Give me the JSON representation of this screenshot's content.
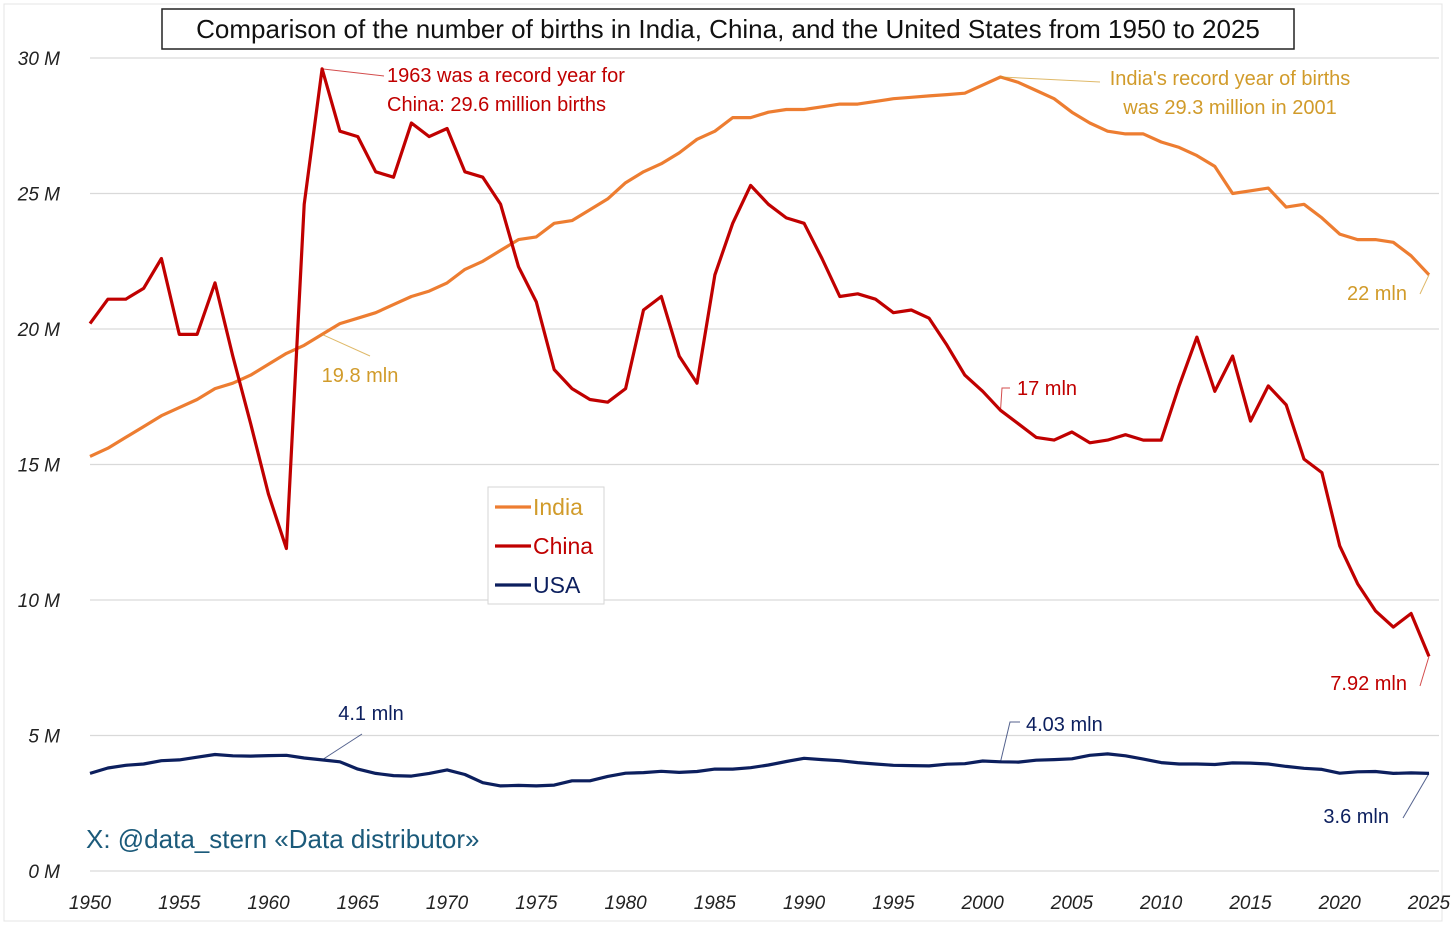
{
  "chart_data": {
    "type": "line",
    "title": "Comparison of the number of births in India, China, and the United States from 1950 to 2025",
    "xlabel": "",
    "ylabel": "",
    "xlim": [
      1950,
      2025
    ],
    "ylim": [
      0,
      30
    ],
    "grid": true,
    "legend_placement": "center-left",
    "y_ticks": [
      0,
      5,
      10,
      15,
      20,
      25,
      30
    ],
    "y_tick_labels": [
      "0 M",
      "5 M",
      "10 M",
      "15 M",
      "20 M",
      "25 M",
      "30 M"
    ],
    "x_ticks": [
      1950,
      1955,
      1960,
      1965,
      1970,
      1975,
      1980,
      1985,
      1990,
      1995,
      2000,
      2005,
      2010,
      2015,
      2020,
      2025
    ],
    "x_tick_labels": [
      "1950",
      "1955",
      "1960",
      "1965",
      "1970",
      "1975",
      "1980",
      "1985",
      "1990",
      "1995",
      "2000",
      "2005",
      "2010",
      "2015",
      "2020",
      "2025"
    ],
    "x_start": 1950,
    "unit": "million births",
    "series": [
      {
        "name": "India",
        "color": "#ed7d31",
        "values": [
          15.3,
          15.6,
          16.0,
          16.4,
          16.8,
          17.1,
          17.4,
          17.8,
          18.0,
          18.3,
          18.7,
          19.1,
          19.4,
          19.8,
          20.2,
          20.4,
          20.6,
          20.9,
          21.2,
          21.4,
          21.7,
          22.2,
          22.5,
          22.9,
          23.3,
          23.4,
          23.9,
          24.0,
          24.4,
          24.8,
          25.4,
          25.8,
          26.1,
          26.5,
          27.0,
          27.3,
          27.8,
          27.8,
          28.0,
          28.1,
          28.1,
          28.2,
          28.3,
          28.3,
          28.4,
          28.5,
          28.55,
          28.6,
          28.65,
          28.7,
          29.0,
          29.3,
          29.1,
          28.8,
          28.5,
          28.0,
          27.6,
          27.3,
          27.2,
          27.2,
          26.9,
          26.7,
          26.4,
          26.0,
          25.0,
          25.1,
          25.2,
          24.5,
          24.6,
          24.1,
          23.5,
          23.3,
          23.3,
          23.2,
          22.7,
          22.0
        ]
      },
      {
        "name": "China",
        "color": "#c00000",
        "values": [
          20.2,
          21.1,
          21.1,
          21.5,
          22.6,
          19.8,
          19.8,
          21.7,
          19.0,
          16.5,
          13.9,
          11.9,
          24.6,
          29.6,
          27.3,
          27.1,
          25.8,
          25.6,
          27.6,
          27.1,
          27.4,
          25.8,
          25.6,
          24.6,
          22.3,
          21.0,
          18.5,
          17.8,
          17.4,
          17.3,
          17.8,
          20.7,
          21.2,
          19.0,
          18.0,
          22.0,
          23.9,
          25.3,
          24.6,
          24.1,
          23.9,
          22.6,
          21.2,
          21.3,
          21.1,
          20.6,
          20.7,
          20.4,
          19.4,
          18.3,
          17.7,
          17.0,
          16.5,
          16.0,
          15.9,
          16.2,
          15.8,
          15.9,
          16.1,
          15.9,
          15.9,
          17.9,
          19.7,
          17.7,
          19.0,
          16.6,
          17.9,
          17.2,
          15.2,
          14.7,
          12.0,
          10.6,
          9.6,
          9.0,
          9.5,
          7.92
        ]
      },
      {
        "name": "USA",
        "color": "#0c1f5e",
        "values": [
          3.6,
          3.8,
          3.9,
          3.95,
          4.07,
          4.1,
          4.2,
          4.3,
          4.25,
          4.24,
          4.26,
          4.27,
          4.17,
          4.1,
          4.03,
          3.76,
          3.6,
          3.52,
          3.5,
          3.6,
          3.73,
          3.56,
          3.26,
          3.14,
          3.16,
          3.14,
          3.17,
          3.33,
          3.33,
          3.49,
          3.61,
          3.63,
          3.68,
          3.64,
          3.67,
          3.76,
          3.76,
          3.81,
          3.91,
          4.04,
          4.16,
          4.11,
          4.07,
          4.0,
          3.95,
          3.9,
          3.89,
          3.88,
          3.94,
          3.96,
          4.06,
          4.03,
          4.02,
          4.09,
          4.11,
          4.14,
          4.27,
          4.32,
          4.25,
          4.13,
          4.0,
          3.95,
          3.95,
          3.93,
          3.99,
          3.98,
          3.95,
          3.86,
          3.79,
          3.75,
          3.61,
          3.66,
          3.67,
          3.6,
          3.62,
          3.6
        ]
      }
    ],
    "annotations": [
      {
        "id": "china-record",
        "text_lines": [
          "1963 was a record year for",
          "China: 29.6 million births"
        ],
        "x": 1963,
        "y": 29.6,
        "color": "#c00000"
      },
      {
        "id": "india-record",
        "text_lines": [
          "India's record year of births",
          "was 29.3 million in 2001"
        ],
        "x": 2001,
        "y": 29.3,
        "color": "#d19b2a"
      },
      {
        "id": "india-1963",
        "text": "19.8 mln",
        "x": 1963,
        "y": 19.8,
        "color": "#d19b2a"
      },
      {
        "id": "india-2025",
        "text": "22 mln",
        "x": 2025,
        "y": 22.0,
        "color": "#d19b2a"
      },
      {
        "id": "china-2001",
        "text": "17 mln",
        "x": 2001,
        "y": 17.0,
        "color": "#c00000"
      },
      {
        "id": "china-2025",
        "text": "7.92 mln",
        "x": 2025,
        "y": 7.92,
        "color": "#c00000"
      },
      {
        "id": "usa-1963",
        "text": "4.1 mln",
        "x": 1963,
        "y": 4.1,
        "color": "#0c1f5e"
      },
      {
        "id": "usa-2001",
        "text": "4.03 mln",
        "x": 2001,
        "y": 4.03,
        "color": "#0c1f5e"
      },
      {
        "id": "usa-2025",
        "text": "3.6 mln",
        "x": 2025,
        "y": 3.6,
        "color": "#0c1f5e"
      }
    ],
    "watermark": "X: @data_stern «Data distributor»"
  }
}
